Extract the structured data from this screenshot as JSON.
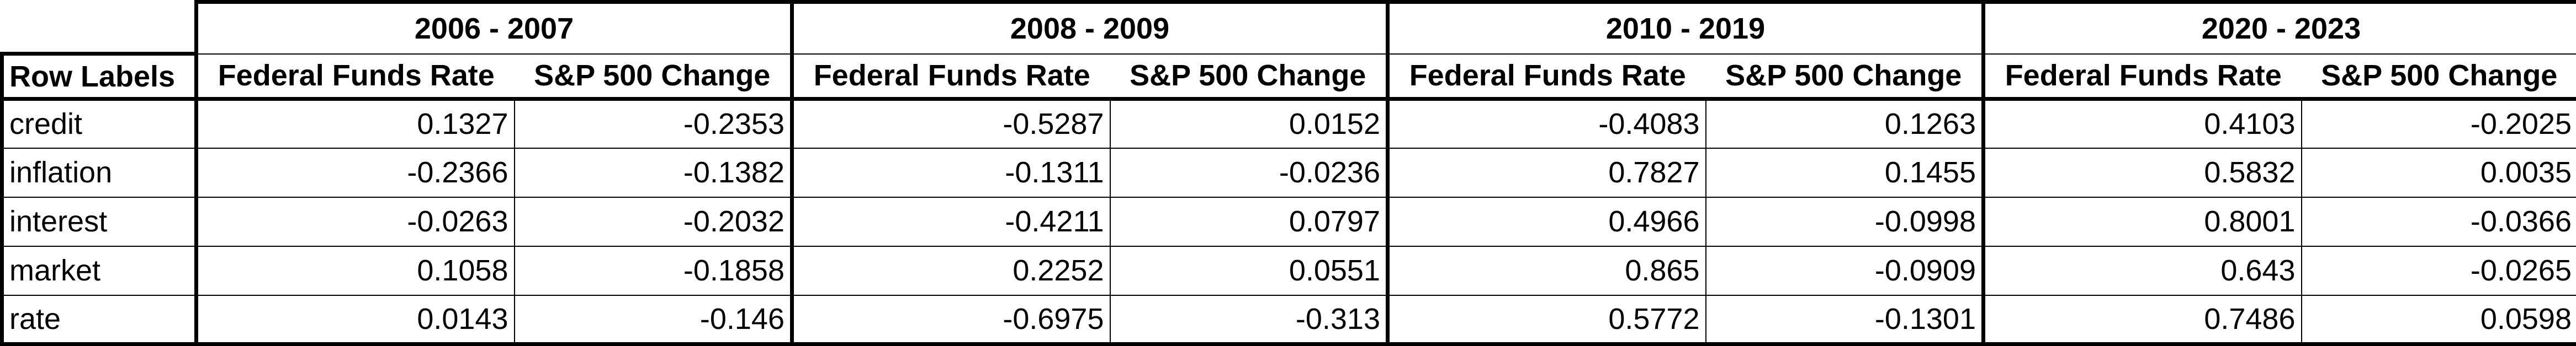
{
  "table": {
    "row_labels_header": "Row Labels",
    "periods": [
      {
        "label": "2006 - 2007",
        "columns": [
          "Federal Funds Rate",
          "S&P 500 Change"
        ]
      },
      {
        "label": "2008 - 2009",
        "columns": [
          "Federal Funds Rate",
          "S&P 500 Change"
        ]
      },
      {
        "label": "2010 - 2019",
        "columns": [
          "Federal Funds Rate",
          "S&P 500 Change"
        ]
      },
      {
        "label": "2020 - 2023",
        "columns": [
          "Federal Funds Rate",
          "S&P 500 Change"
        ]
      }
    ],
    "rows": [
      {
        "label": "credit",
        "values": [
          "0.1327",
          "-0.2353",
          "-0.5287",
          "0.0152",
          "-0.4083",
          "0.1263",
          "0.4103",
          "-0.2025"
        ]
      },
      {
        "label": "inflation",
        "values": [
          "-0.2366",
          "-0.1382",
          "-0.1311",
          "-0.0236",
          "0.7827",
          "0.1455",
          "0.5832",
          "0.0035"
        ]
      },
      {
        "label": "interest",
        "values": [
          "-0.0263",
          "-0.2032",
          "-0.4211",
          "0.0797",
          "0.4966",
          "-0.0998",
          "0.8001",
          "-0.0366"
        ]
      },
      {
        "label": "market",
        "values": [
          "0.1058",
          "-0.1858",
          "0.2252",
          "0.0551",
          "0.865",
          "-0.0909",
          "0.643",
          "-0.0265"
        ]
      },
      {
        "label": "rate",
        "values": [
          "0.0143",
          "-0.146",
          "-0.6975",
          "-0.313",
          "0.5772",
          "-0.1301",
          "0.7486",
          "0.0598"
        ]
      }
    ]
  }
}
